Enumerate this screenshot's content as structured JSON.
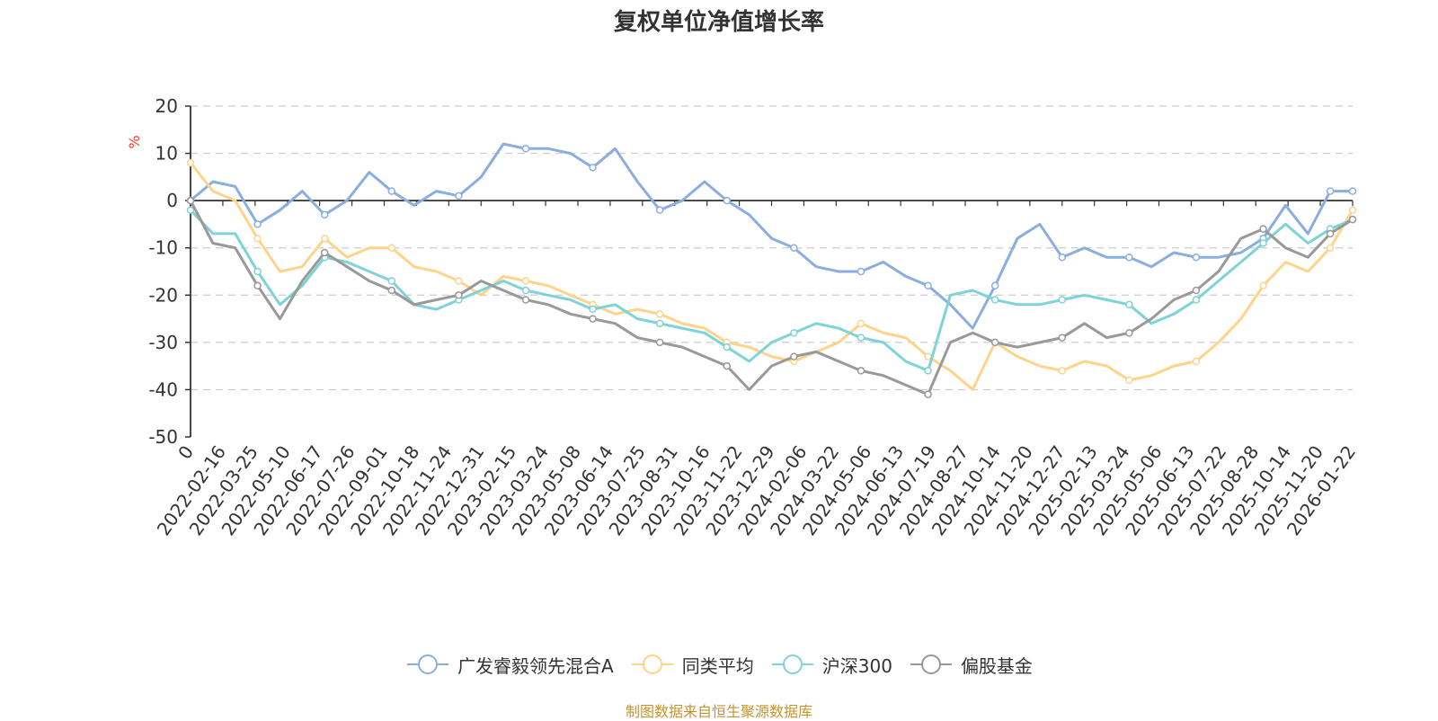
{
  "chart_data": {
    "type": "line",
    "title": "复权单位净值增长率",
    "ylabel": "%",
    "ylim": [
      -50,
      20
    ],
    "yticks": [
      20,
      10,
      0,
      -10,
      -20,
      -30,
      -40,
      -50
    ],
    "grid": true,
    "legend_position": "bottom",
    "xticks": [
      "0",
      "2022-02-16",
      "2022-03-25",
      "2022-05-10",
      "2022-06-17",
      "2022-07-26",
      "2022-09-01",
      "2022-10-18",
      "2022-11-24",
      "2022-12-31",
      "2023-02-15",
      "2023-03-24",
      "2023-05-08",
      "2023-06-14",
      "2023-07-25",
      "2023-08-31",
      "2023-10-16",
      "2023-11-22",
      "2023-12-29",
      "2024-02-06",
      "2024-03-22",
      "2024-05-06",
      "2024-06-13",
      "2024-07-19",
      "2024-08-27",
      "2024-10-14",
      "2024-11-20",
      "2024-12-27",
      "2025-02-13",
      "2025-03-24",
      "2025-05-06",
      "2025-06-13",
      "2025-07-22",
      "2025-08-28",
      "2025-10-14",
      "2025-11-20",
      "2026-01-22"
    ],
    "series": [
      {
        "name": "广发睿毅领先混合A",
        "color": "#8aaee0",
        "values": [
          0,
          4,
          3,
          -5,
          -2,
          2,
          -3,
          0,
          6,
          2,
          -1,
          2,
          1,
          5,
          12,
          11,
          11,
          10,
          7,
          11,
          4,
          -2,
          0,
          4,
          0,
          -3,
          -8,
          -10,
          -14,
          -15,
          -15,
          -13,
          -16,
          -18,
          -22,
          -27,
          -18,
          -8,
          -5,
          -12,
          -10,
          -12,
          -12,
          -14,
          -11,
          -12,
          -12,
          -11,
          -8,
          -1,
          -7,
          2,
          2
        ]
      },
      {
        "name": "同类平均",
        "color": "#ffd48a",
        "values": [
          8,
          2,
          0,
          -8,
          -15,
          -14,
          -8,
          -12,
          -10,
          -10,
          -14,
          -15,
          -17,
          -20,
          -16,
          -17,
          -18,
          -20,
          -22,
          -24,
          -23,
          -24,
          -26,
          -27,
          -30,
          -31,
          -33,
          -34,
          -32,
          -30,
          -26,
          -28,
          -29,
          -33,
          -36,
          -40,
          -30,
          -33,
          -35,
          -36,
          -34,
          -35,
          -38,
          -37,
          -35,
          -34,
          -30,
          -25,
          -18,
          -13,
          -15,
          -10,
          -2
        ]
      },
      {
        "name": "沪深300",
        "color": "#7ed3d6",
        "values": [
          -2,
          -7,
          -7,
          -15,
          -22,
          -18,
          -12,
          -13,
          -15,
          -17,
          -22,
          -23,
          -21,
          -19,
          -17,
          -19,
          -20,
          -21,
          -23,
          -22,
          -25,
          -26,
          -27,
          -28,
          -31,
          -34,
          -30,
          -28,
          -26,
          -27,
          -29,
          -30,
          -34,
          -36,
          -20,
          -19,
          -21,
          -22,
          -22,
          -21,
          -20,
          -21,
          -22,
          -26,
          -24,
          -21,
          -17,
          -13,
          -9,
          -5,
          -9,
          -6,
          -4
        ]
      },
      {
        "name": "偏股基金",
        "color": "#999999",
        "values": [
          0,
          -9,
          -10,
          -18,
          -25,
          -17,
          -11,
          -14,
          -17,
          -19,
          -22,
          -21,
          -20,
          -17,
          -19,
          -21,
          -22,
          -24,
          -25,
          -26,
          -29,
          -30,
          -31,
          -33,
          -35,
          -40,
          -35,
          -33,
          -32,
          -34,
          -36,
          -37,
          -39,
          -41,
          -30,
          -28,
          -30,
          -31,
          -30,
          -29,
          -26,
          -29,
          -28,
          -25,
          -21,
          -19,
          -15,
          -8,
          -6,
          -10,
          -12,
          -7,
          -4
        ]
      }
    ]
  },
  "footer": {
    "source_text": "制图数据来自恒生聚源数据库"
  }
}
